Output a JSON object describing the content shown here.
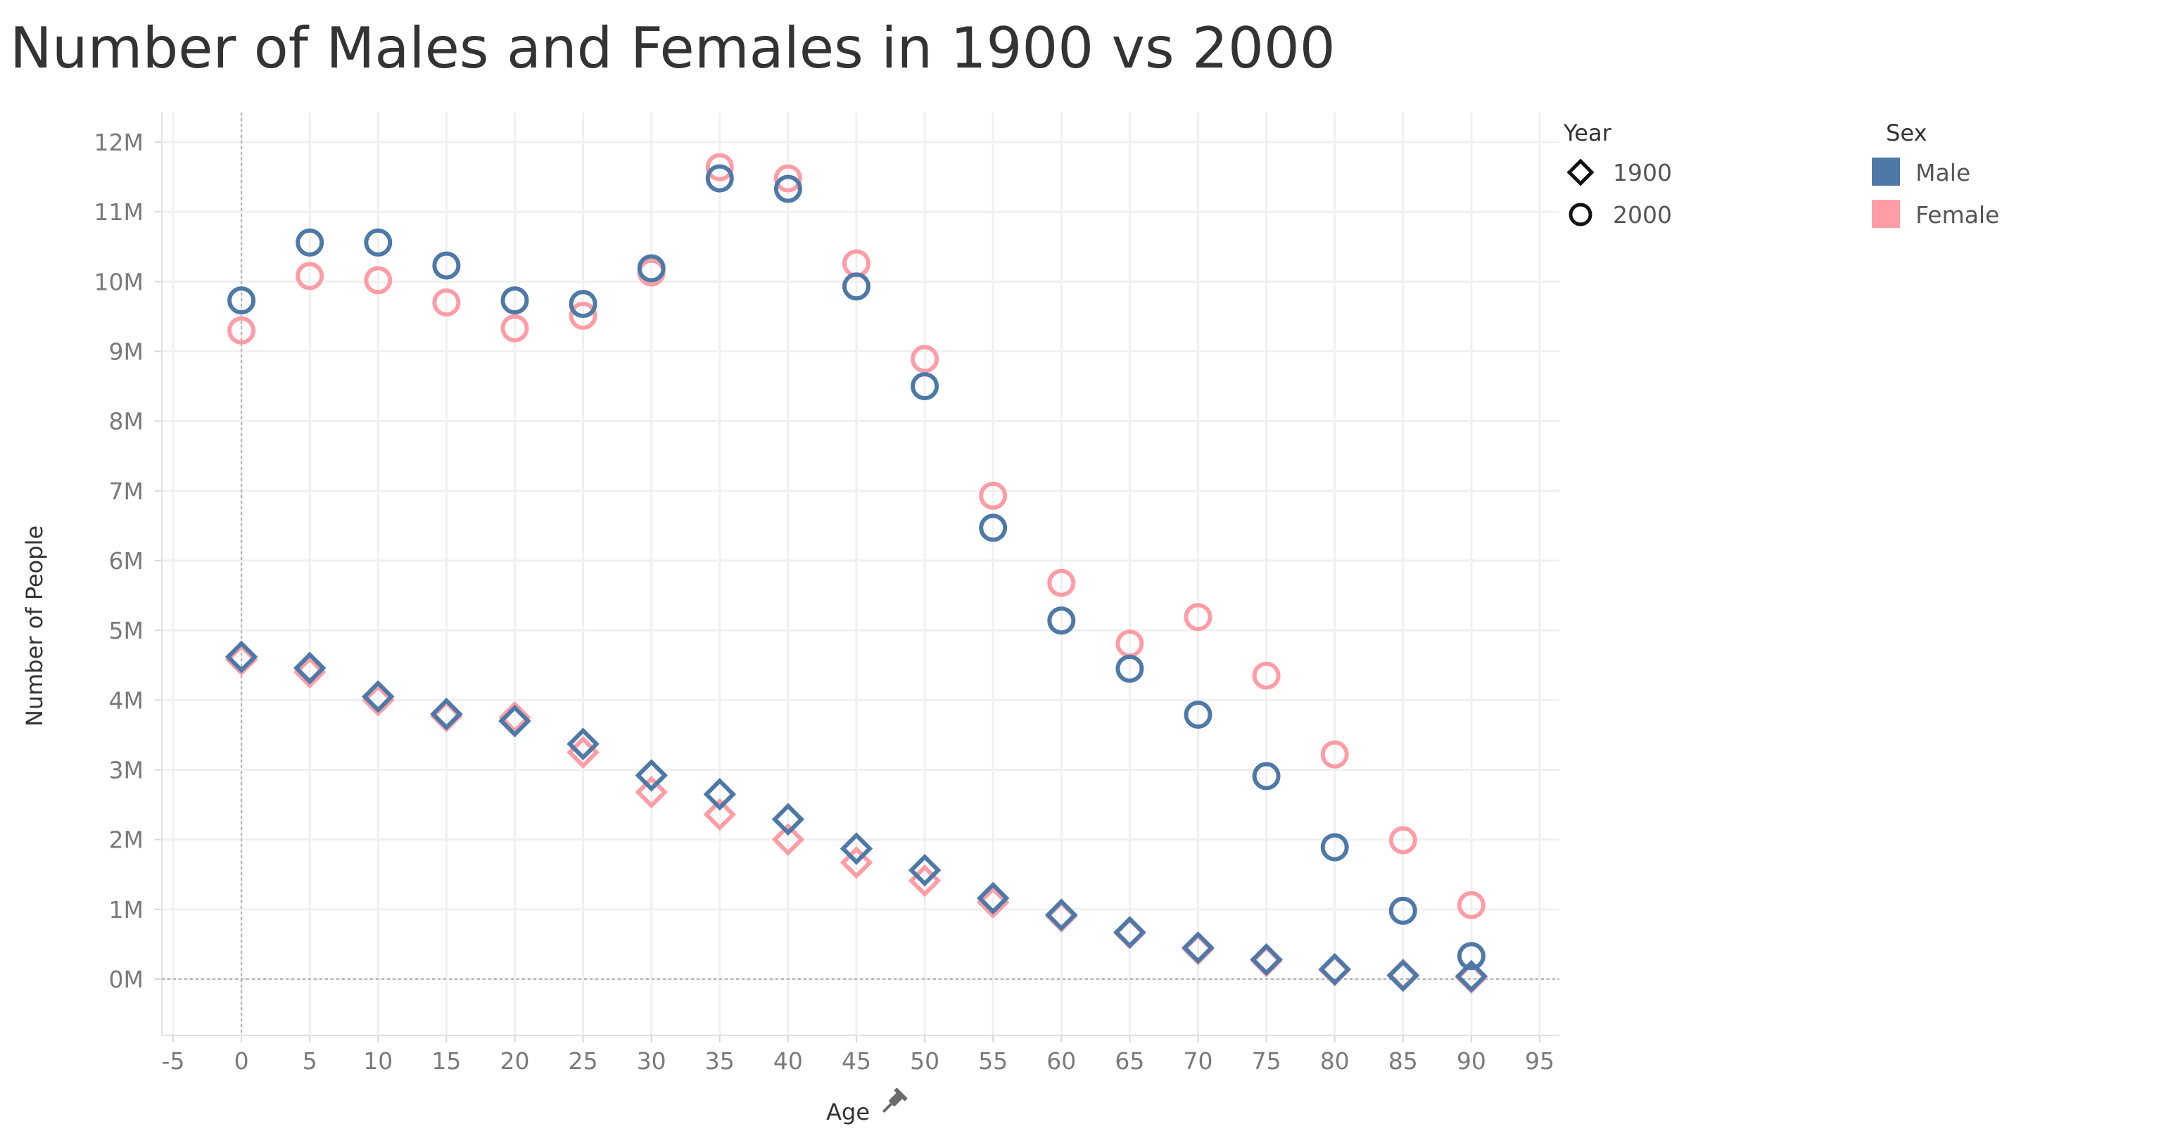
{
  "title": "Number of Males and Females in 1900 vs 2000",
  "colors": {
    "male": "#4e79a7",
    "female": "#ff9da7",
    "grid": "#f0f0f0",
    "zero_line": "#b0b0b0"
  },
  "legend": {
    "year_title": "Year",
    "year_items": [
      {
        "label": "1900",
        "shape": "diamond"
      },
      {
        "label": "2000",
        "shape": "circle"
      }
    ],
    "sex_title": "Sex",
    "sex_items": [
      {
        "label": "Male",
        "color": "#4e79a7"
      },
      {
        "label": "Female",
        "color": "#ff9da7"
      }
    ]
  },
  "pin_icon": "pin-icon",
  "chart_data": {
    "type": "scatter",
    "title": "Number of Males and Females in 1900 vs 2000",
    "xlabel": "Age",
    "ylabel": "Number of People",
    "xlim": [
      -5,
      95
    ],
    "ylim": [
      0,
      12000000
    ],
    "x_ticks": [
      -5,
      0,
      5,
      10,
      15,
      20,
      25,
      30,
      35,
      40,
      45,
      50,
      55,
      60,
      65,
      70,
      75,
      80,
      85,
      90,
      95
    ],
    "x_tick_labels": [
      "-5",
      "0",
      "5",
      "10",
      "15",
      "20",
      "25",
      "30",
      "35",
      "40",
      "45",
      "50",
      "55",
      "60",
      "65",
      "70",
      "75",
      "80",
      "85",
      "90",
      "95"
    ],
    "y_ticks": [
      0,
      1000000,
      2000000,
      3000000,
      4000000,
      5000000,
      6000000,
      7000000,
      8000000,
      9000000,
      10000000,
      11000000,
      12000000
    ],
    "y_tick_labels": [
      "0M",
      "1M",
      "2M",
      "3M",
      "4M",
      "5M",
      "6M",
      "7M",
      "8M",
      "9M",
      "10M",
      "11M",
      "12M"
    ],
    "grid": true,
    "legend_position": "right",
    "x": [
      0,
      5,
      10,
      15,
      20,
      25,
      30,
      35,
      40,
      45,
      50,
      55,
      60,
      65,
      70,
      75,
      80,
      85,
      90
    ],
    "series": [
      {
        "year": "1900",
        "sex": "Female",
        "marker": "diamond",
        "color": "#ff9da7",
        "values": [
          4580000,
          4400000,
          4000000,
          3770000,
          3750000,
          3250000,
          2680000,
          2360000,
          2000000,
          1670000,
          1410000,
          1100000,
          900000,
          660000,
          430000,
          260000,
          130000,
          60000,
          20000
        ]
      },
      {
        "year": "1900",
        "sex": "Male",
        "marker": "diamond",
        "color": "#4e79a7",
        "values": [
          4620000,
          4460000,
          4050000,
          3800000,
          3700000,
          3370000,
          2920000,
          2650000,
          2290000,
          1870000,
          1560000,
          1160000,
          920000,
          670000,
          450000,
          280000,
          140000,
          50000,
          40000
        ]
      },
      {
        "year": "2000",
        "sex": "Female",
        "marker": "circle",
        "color": "#ff9da7",
        "values": [
          9300000,
          10080000,
          10020000,
          9700000,
          9330000,
          9510000,
          10130000,
          11640000,
          11480000,
          10260000,
          8890000,
          6930000,
          5680000,
          4810000,
          5190000,
          4350000,
          3220000,
          1990000,
          1060000
        ]
      },
      {
        "year": "2000",
        "sex": "Male",
        "marker": "circle",
        "color": "#4e79a7",
        "values": [
          9730000,
          10560000,
          10560000,
          10230000,
          9730000,
          9680000,
          10190000,
          11480000,
          11330000,
          9930000,
          8500000,
          6470000,
          5140000,
          4450000,
          3790000,
          2910000,
          1890000,
          980000,
          330000
        ]
      }
    ]
  }
}
